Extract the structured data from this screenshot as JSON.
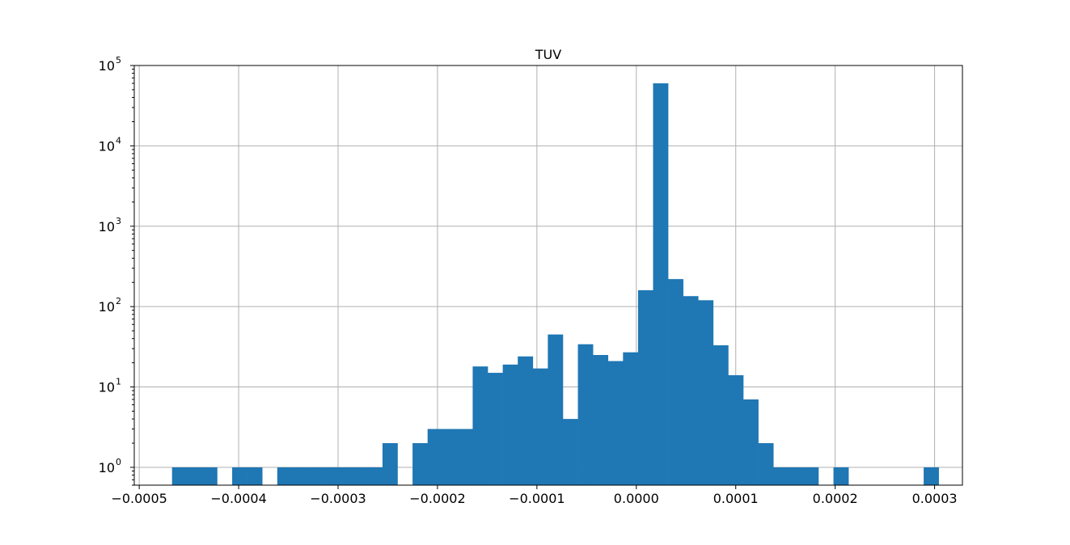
{
  "chart_data": {
    "type": "bar",
    "subtype": "histogram",
    "title": "TUV",
    "xlabel": "",
    "ylabel": "",
    "y_scale": "log",
    "grid": true,
    "legend": "none",
    "bar_color": "#1f77b4",
    "xlim": [
      -0.000505,
      0.000328
    ],
    "ylim": [
      0.6,
      100000
    ],
    "x_ticks": [
      -0.0005,
      -0.0004,
      -0.0003,
      -0.0002,
      -0.0001,
      0.0,
      0.0001,
      0.0002,
      0.0003
    ],
    "x_tick_labels": [
      "−0.0005",
      "−0.0004",
      "−0.0003",
      "−0.0002",
      "−0.0001",
      "0.0000",
      "0.0001",
      "0.0002",
      "0.0003"
    ],
    "y_ticks": [
      1,
      10,
      100,
      1000,
      10000,
      100000
    ],
    "y_tick_labels": [
      {
        "base": "10",
        "exp": "0"
      },
      {
        "base": "10",
        "exp": "1"
      },
      {
        "base": "10",
        "exp": "2"
      },
      {
        "base": "10",
        "exp": "3"
      },
      {
        "base": "10",
        "exp": "4"
      },
      {
        "base": "10",
        "exp": "5"
      }
    ],
    "bin_start": -0.000467,
    "bin_width": 1.512e-05,
    "counts": [
      1,
      1,
      1,
      0,
      1,
      1,
      0,
      1,
      1,
      1,
      1,
      1,
      1,
      1,
      2,
      0,
      2,
      3,
      3,
      3,
      18,
      15,
      19,
      24,
      17,
      45,
      4,
      34,
      25,
      21,
      27,
      160,
      60000,
      220,
      135,
      120,
      33,
      14,
      7,
      2,
      1,
      1,
      1,
      0,
      1,
      0,
      0,
      0,
      0,
      0,
      1
    ]
  }
}
